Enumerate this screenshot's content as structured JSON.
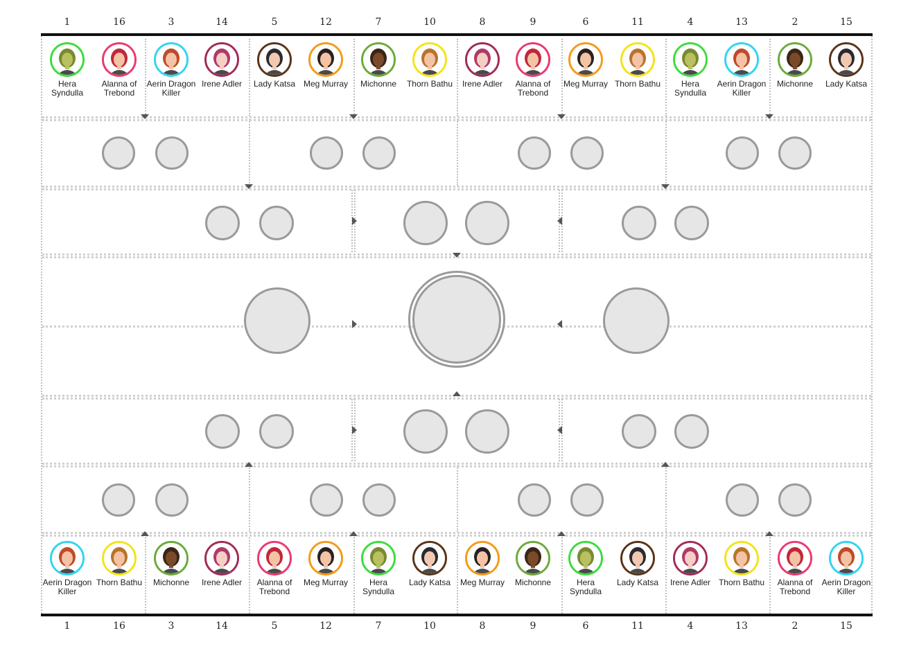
{
  "top_seeds": [
    "1",
    "16",
    "3",
    "14",
    "5",
    "12",
    "7",
    "10",
    "8",
    "9",
    "6",
    "11",
    "4",
    "13",
    "2",
    "15"
  ],
  "bottom_seeds": [
    "1",
    "16",
    "3",
    "14",
    "5",
    "12",
    "7",
    "10",
    "8",
    "9",
    "6",
    "11",
    "4",
    "13",
    "2",
    "15"
  ],
  "top_entrants": [
    {
      "name": "Hera Syndulla",
      "ring": "#3ddc3d",
      "skin": "#b8c060",
      "hair": "#7a8a30"
    },
    {
      "name": "Alanna of Trebond",
      "ring": "#ea3a6e",
      "skin": "#f4c3a6",
      "hair": "#c0283a"
    },
    {
      "name": "Aerin Dragon Killer",
      "ring": "#33d4f0",
      "skin": "#f4c3a6",
      "hair": "#c04a2a"
    },
    {
      "name": "Irene Adler",
      "ring": "#a32a58",
      "skin": "#f6cfc4",
      "hair": "#b03a6a"
    },
    {
      "name": "Lady Katsa",
      "ring": "#5a3418",
      "skin": "#f2c9b0",
      "hair": "#2a2a30"
    },
    {
      "name": "Meg Murray",
      "ring": "#f59a1a",
      "skin": "#f4c3a6",
      "hair": "#2a2020"
    },
    {
      "name": "Michonne",
      "ring": "#6bab3a",
      "skin": "#7a4a2a",
      "hair": "#3a2616"
    },
    {
      "name": "Thorn Bathu",
      "ring": "#f2e41a",
      "skin": "#f4c3a6",
      "hair": "#b8742a"
    },
    {
      "name": "Irene Adler",
      "ring": "#a32a58",
      "skin": "#f6cfc4",
      "hair": "#b03a6a"
    },
    {
      "name": "Alanna of Trebond",
      "ring": "#ea3a6e",
      "skin": "#f4c3a6",
      "hair": "#c0283a"
    },
    {
      "name": "Meg Murray",
      "ring": "#f59a1a",
      "skin": "#f4c3a6",
      "hair": "#2a2020"
    },
    {
      "name": "Thorn Bathu",
      "ring": "#f2e41a",
      "skin": "#f4c3a6",
      "hair": "#b8742a"
    },
    {
      "name": "Hera Syndulla",
      "ring": "#3ddc3d",
      "skin": "#b8c060",
      "hair": "#7a8a30"
    },
    {
      "name": "Aerin Dragon Killer",
      "ring": "#33d4f0",
      "skin": "#f4c3a6",
      "hair": "#c04a2a"
    },
    {
      "name": "Michonne",
      "ring": "#6bab3a",
      "skin": "#7a4a2a",
      "hair": "#3a2616"
    },
    {
      "name": "Lady Katsa",
      "ring": "#5a3418",
      "skin": "#f2c9b0",
      "hair": "#2a2a30"
    }
  ],
  "bottom_entrants": [
    {
      "name": "Aerin Dragon Killer",
      "ring": "#33d4f0",
      "skin": "#f4c3a6",
      "hair": "#c04a2a"
    },
    {
      "name": "Thorn Bathu",
      "ring": "#f2e41a",
      "skin": "#f4c3a6",
      "hair": "#b8742a"
    },
    {
      "name": "Michonne",
      "ring": "#6bab3a",
      "skin": "#7a4a2a",
      "hair": "#3a2616"
    },
    {
      "name": "Irene Adler",
      "ring": "#a32a58",
      "skin": "#f6cfc4",
      "hair": "#b03a6a"
    },
    {
      "name": "Alanna of Trebond",
      "ring": "#ea3a6e",
      "skin": "#f4c3a6",
      "hair": "#c0283a"
    },
    {
      "name": "Meg Murray",
      "ring": "#f59a1a",
      "skin": "#f4c3a6",
      "hair": "#2a2020"
    },
    {
      "name": "Hera Syndulla",
      "ring": "#3ddc3d",
      "skin": "#b8c060",
      "hair": "#7a8a30"
    },
    {
      "name": "Lady Katsa",
      "ring": "#5a3418",
      "skin": "#f2c9b0",
      "hair": "#2a2a30"
    },
    {
      "name": "Meg Murray",
      "ring": "#f59a1a",
      "skin": "#f4c3a6",
      "hair": "#2a2020"
    },
    {
      "name": "Michonne",
      "ring": "#6bab3a",
      "skin": "#7a4a2a",
      "hair": "#3a2616"
    },
    {
      "name": "Hera Syndulla",
      "ring": "#3ddc3d",
      "skin": "#b8c060",
      "hair": "#7a8a30"
    },
    {
      "name": "Lady Katsa",
      "ring": "#5a3418",
      "skin": "#f2c9b0",
      "hair": "#2a2a30"
    },
    {
      "name": "Irene Adler",
      "ring": "#a32a58",
      "skin": "#f6cfc4",
      "hair": "#b03a6a"
    },
    {
      "name": "Thorn Bathu",
      "ring": "#f2e41a",
      "skin": "#f4c3a6",
      "hair": "#b8742a"
    },
    {
      "name": "Alanna of Trebond",
      "ring": "#ea3a6e",
      "skin": "#f4c3a6",
      "hair": "#c0283a"
    },
    {
      "name": "Aerin Dragon Killer",
      "ring": "#33d4f0",
      "skin": "#f4c3a6",
      "hair": "#c04a2a"
    }
  ],
  "colors": {
    "empty_slot_fill": "#e6e6e6",
    "empty_slot_border": "#9a9a9a",
    "bar": "#111111"
  }
}
